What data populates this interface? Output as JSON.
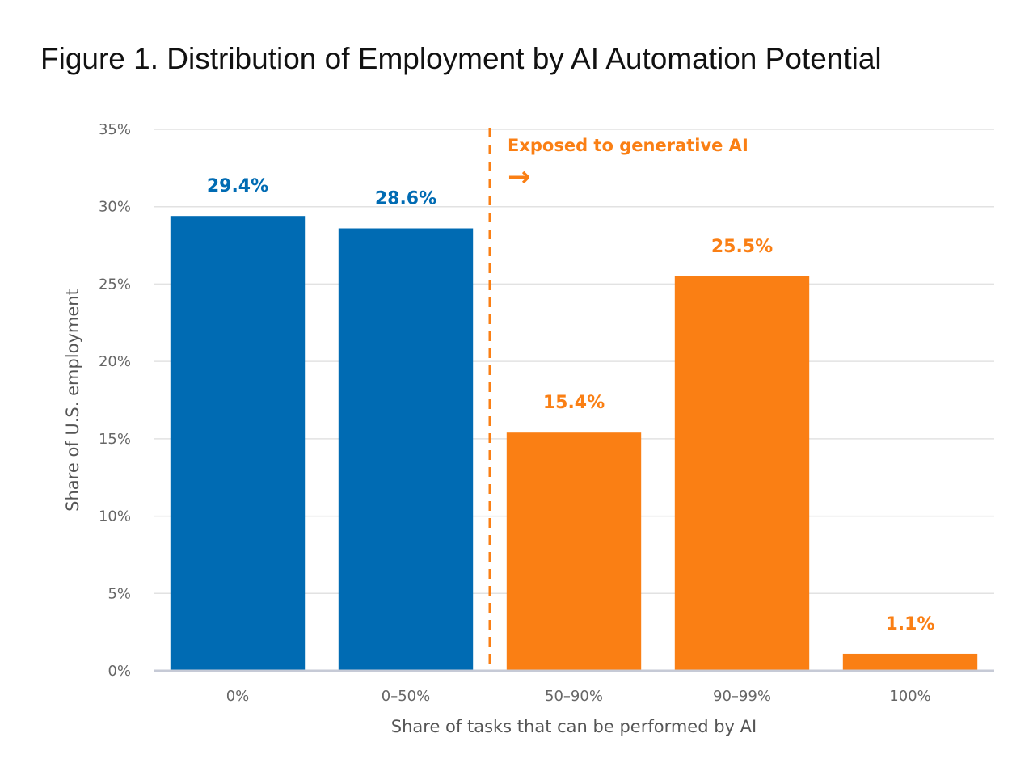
{
  "chart_data": {
    "type": "bar",
    "title": "Figure 1. Distribution of Employment by AI Automation Potential",
    "xlabel": "Share of tasks that can be performed by AI",
    "ylabel": "Share of U.S. employment",
    "categories": [
      "0%",
      "0–50%",
      "50–90%",
      "90–99%",
      "100%"
    ],
    "values": [
      29.4,
      28.6,
      15.4,
      25.5,
      1.1
    ],
    "data_labels": [
      "29.4%",
      "28.6%",
      "15.4%",
      "25.5%",
      "1.1%"
    ],
    "exposed": [
      false,
      false,
      true,
      true,
      true
    ],
    "ylim": [
      0,
      35
    ],
    "yticks": [
      0,
      5,
      10,
      15,
      20,
      25,
      30,
      35
    ],
    "ytick_labels": [
      "0%",
      "5%",
      "10%",
      "15%",
      "20%",
      "25%",
      "30%",
      "35%"
    ],
    "grid": true,
    "annotation": {
      "text": "Exposed to generative AI",
      "arrow": "→",
      "divider_between_categories": [
        1,
        2
      ]
    },
    "colors": {
      "not_exposed": "#006bb3",
      "exposed": "#fa7f14",
      "gridline": "#e2e2e2",
      "axis_line": "#c6cad6"
    }
  }
}
